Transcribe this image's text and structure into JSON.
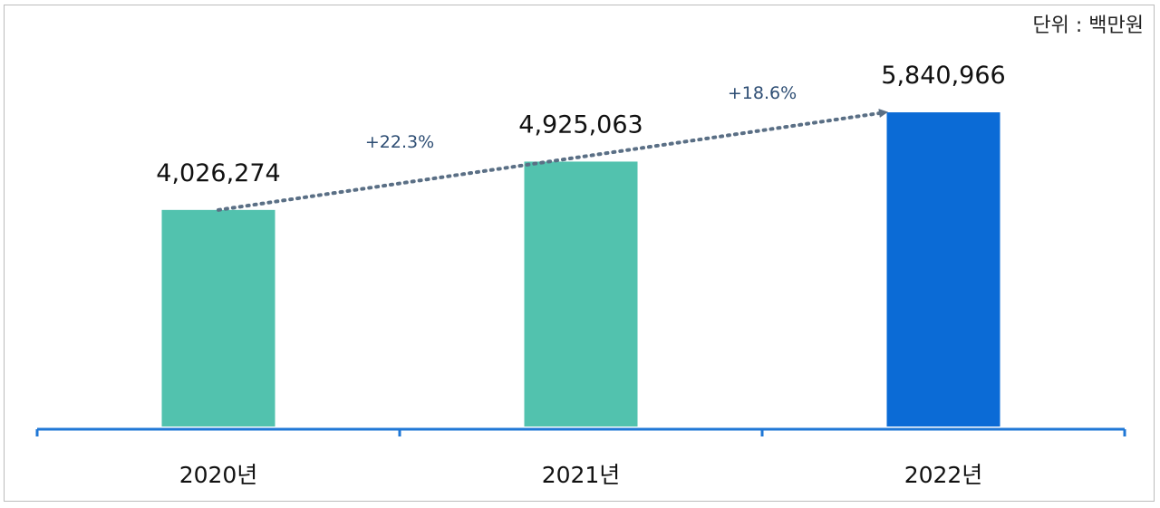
{
  "unit_label": "단위 : 백만원",
  "chart_data": {
    "type": "bar",
    "title": "",
    "xlabel": "",
    "ylabel": "",
    "unit": "단위 : 백만원",
    "categories": [
      "2020년",
      "2021년",
      "2022년"
    ],
    "values": [
      4026274,
      4925063,
      5840966
    ],
    "value_labels": [
      "4,026,274",
      "4,925,063",
      "5,840,966"
    ],
    "bar_colors": [
      "#52c2ae",
      "#52c2ae",
      "#0b6bd6"
    ],
    "axis_color": "#1f77d6",
    "trend_color": "#5a6f85",
    "growth": [
      {
        "label": "+22.3%",
        "from": "2020년",
        "to": "2021년"
      },
      {
        "label": "+18.6%",
        "from": "2021년",
        "to": "2022년"
      }
    ],
    "ylim": [
      0,
      6500000
    ],
    "grid": false,
    "legend": "none"
  }
}
